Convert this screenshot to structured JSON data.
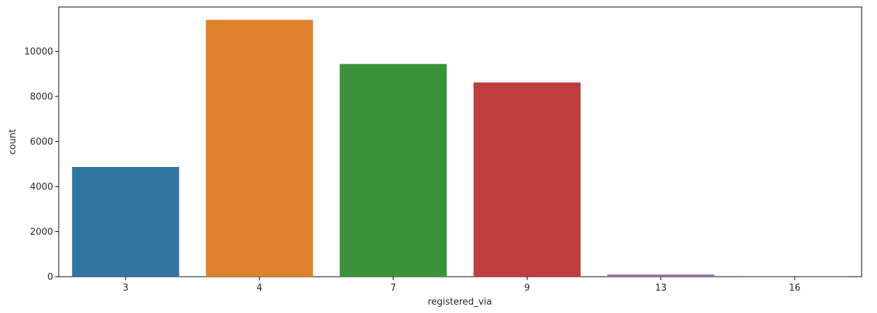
{
  "chart_data": {
    "type": "bar",
    "title": "",
    "xlabel": "registered_via",
    "ylabel": "count",
    "categories": [
      "3",
      "4",
      "7",
      "9",
      "13",
      "16"
    ],
    "values": [
      4870,
      11400,
      9440,
      8620,
      95,
      5
    ],
    "colors": [
      "#3274a1",
      "#e1812c",
      "#3a923a",
      "#c03d3e",
      "#9372b2",
      "#845b53"
    ],
    "ylim": [
      0,
      11970
    ],
    "yticks": [
      0,
      2000,
      4000,
      6000,
      8000,
      10000
    ],
    "ytick_labels": [
      "0",
      "2000",
      "4000",
      "6000",
      "8000",
      "10000"
    ],
    "grid": false,
    "legend": "none"
  }
}
